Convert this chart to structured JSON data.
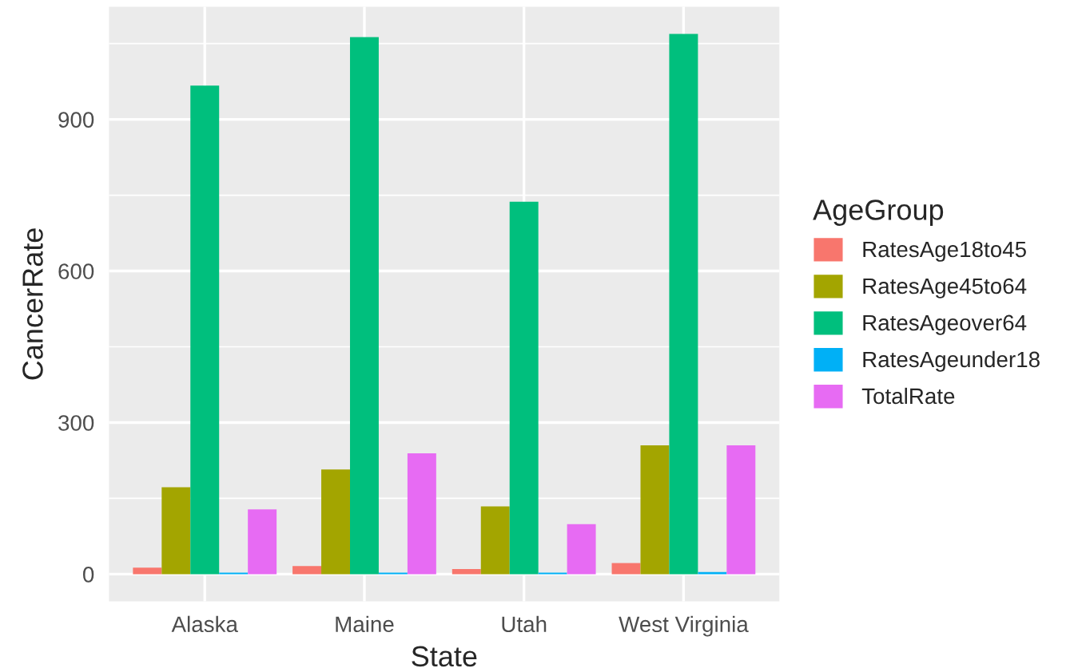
{
  "chart_data": {
    "type": "bar",
    "xlabel": "State",
    "ylabel": "CancerRate",
    "legend_title": "AgeGroup",
    "categories": [
      "Alaska",
      "Maine",
      "Utah",
      "West Virginia"
    ],
    "series": [
      {
        "name": "RatesAge18to45",
        "color": "#f8766d",
        "values": [
          13,
          16,
          10,
          22
        ]
      },
      {
        "name": "RatesAge45to64",
        "color": "#a3a500",
        "values": [
          172,
          207,
          134,
          255
        ]
      },
      {
        "name": "RatesAgeover64",
        "color": "#00bf7d",
        "values": [
          967,
          1063,
          737,
          1069
        ]
      },
      {
        "name": "RatesAgeunder18",
        "color": "#00b0f6",
        "values": [
          3,
          3,
          3,
          4
        ]
      },
      {
        "name": "TotalRate",
        "color": "#e76bf3",
        "values": [
          128,
          239,
          99,
          255
        ]
      }
    ],
    "ylim": [
      -54,
      1123
    ],
    "yticks": [
      0,
      300,
      600,
      900
    ],
    "grid": true,
    "legend": "right"
  }
}
